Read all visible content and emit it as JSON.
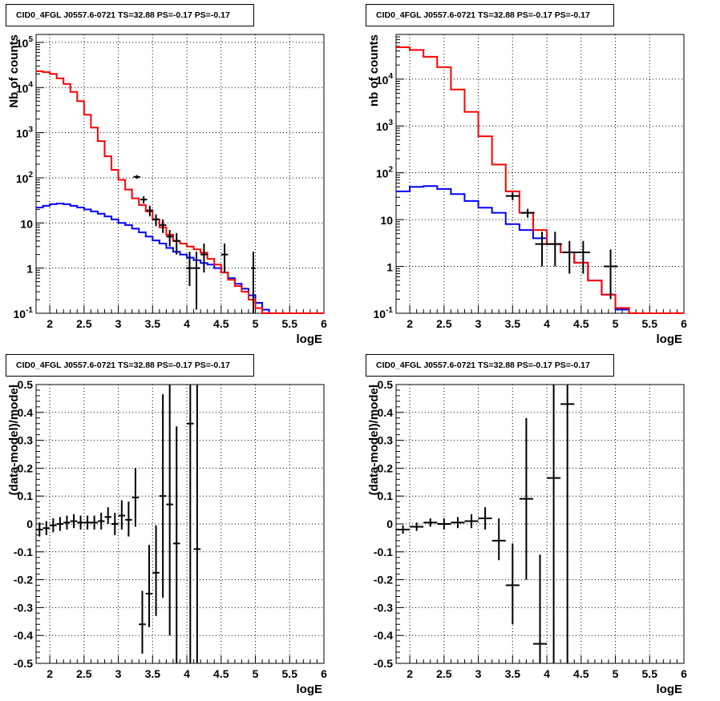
{
  "style": {
    "model_color": "#ff0000",
    "background_color": "#0000ff",
    "data_color": "#000000",
    "grid": true
  },
  "panels": [
    {
      "title": "CID0_4FGL J0557.6-0721 TS=32.88 PS=-0.17 PS=-0.17",
      "ylabel": "Nb of counts",
      "xlabel": "logE"
    },
    {
      "title": "CID0_4FGL J0557.6-0721 TS=32.88 PS=-0.17 PS=-0.17",
      "ylabel": "nb of counts",
      "xlabel": "logE"
    },
    {
      "title": "CID0_4FGL J0557.6-0721 TS=32.88 PS=-0.17 PS=-0.17",
      "ylabel": "(data-model)/model",
      "xlabel": "logE"
    },
    {
      "title": "CID0_4FGL J0557.6-0721 TS=32.88 PS=-0.17 PS=-0.17",
      "ylabel": "(data-model)/model",
      "xlabel": "logE"
    }
  ],
  "chart_data": [
    {
      "type": "histogram",
      "scale": "log",
      "xlabel": "logE",
      "ylabel": "Nb of counts",
      "xlim": [
        1.8,
        6.0
      ],
      "ylim": [
        0.1,
        150000
      ],
      "xticks": [
        "2",
        "2.5",
        "3",
        "3.5",
        "4",
        "4.5",
        "5",
        "5.5",
        "6"
      ],
      "yticks": [
        {
          "value": 0.1,
          "base": "10",
          "sup": "-1"
        },
        {
          "value": 1,
          "base": "1",
          "sup": ""
        },
        {
          "value": 10,
          "base": "10",
          "sup": ""
        },
        {
          "value": 100,
          "base": "10",
          "sup": "2"
        },
        {
          "value": 1000,
          "base": "10",
          "sup": "3"
        },
        {
          "value": 10000,
          "base": "10",
          "sup": "4"
        },
        {
          "value": 100000,
          "base": "10",
          "sup": "5"
        }
      ],
      "bin_edges": [
        1.8,
        1.9,
        2.0,
        2.1,
        2.2,
        2.3,
        2.4,
        2.5,
        2.6,
        2.7,
        2.8,
        2.9,
        3.0,
        3.1,
        3.2,
        3.3,
        3.4,
        3.5,
        3.6,
        3.7,
        3.8,
        3.9,
        4.0,
        4.1,
        4.2,
        4.3,
        4.4,
        4.5,
        4.6,
        4.7,
        4.8,
        4.9,
        5.0,
        5.1,
        5.2,
        5.3,
        5.4,
        5.5,
        5.6,
        5.7,
        5.8,
        5.9,
        6.0
      ],
      "series": [
        {
          "role": "model",
          "values": [
            23000,
            22000,
            20000,
            16000,
            12000,
            8000,
            5000,
            2500,
            1300,
            650,
            300,
            150,
            90,
            55,
            35,
            25,
            18,
            12,
            8,
            5.5,
            4.0,
            3.5,
            3.0,
            2.6,
            2.2,
            1.6,
            1.2,
            0.8,
            0.55,
            0.4,
            0.3,
            0.2,
            0.13,
            0.1,
            0.1,
            0.1,
            0.1,
            0.1,
            0.1,
            0.1,
            0.1,
            0.1
          ]
        },
        {
          "role": "background",
          "values": [
            22,
            24,
            26,
            27,
            26,
            24,
            22,
            20,
            18,
            16,
            14,
            12,
            10,
            9,
            7.5,
            6.2,
            5.0,
            4.1,
            3.5,
            2.8,
            2.3,
            2.0,
            1.7,
            1.5,
            1.3,
            1.2,
            1.0,
            0.8,
            0.6,
            0.45,
            0.35,
            0.25,
            0.17,
            0.12,
            0.1,
            0.1,
            0.1,
            0.1,
            0.1,
            0.1,
            0.1,
            0.1
          ]
        }
      ],
      "points": [
        {
          "x": 3.27,
          "y": 105,
          "xerr": 0.05,
          "ylo": 95,
          "yhi": 115
        },
        {
          "x": 3.37,
          "y": 33,
          "xerr": 0.05,
          "ylo": 27,
          "yhi": 39
        },
        {
          "x": 3.46,
          "y": 19,
          "xerr": 0.05,
          "ylo": 14,
          "yhi": 24
        },
        {
          "x": 3.55,
          "y": 12,
          "xerr": 0.05,
          "ylo": 8.5,
          "yhi": 15.5
        },
        {
          "x": 3.65,
          "y": 9,
          "xerr": 0.05,
          "ylo": 6,
          "yhi": 12
        },
        {
          "x": 3.75,
          "y": 5,
          "xerr": 0.05,
          "ylo": 3,
          "yhi": 7
        },
        {
          "x": 3.85,
          "y": 4,
          "xerr": 0.05,
          "ylo": 2,
          "yhi": 6
        },
        {
          "x": 4.04,
          "y": 1,
          "xerr": 0.05,
          "ylo": 0.4,
          "yhi": 2.3
        },
        {
          "x": 4.14,
          "y": 1,
          "xerr": 0.05,
          "ylo": 0.12,
          "yhi": 2.3
        },
        {
          "x": 4.25,
          "y": 2,
          "xerr": 0.05,
          "ylo": 0.8,
          "yhi": 3.5
        },
        {
          "x": 4.55,
          "y": 2,
          "xerr": 0.05,
          "ylo": 0.8,
          "yhi": 3.5
        },
        {
          "x": 4.97,
          "y": 1,
          "xerr": 0.03,
          "ylo": 0.1,
          "yhi": 2.3
        }
      ]
    },
    {
      "type": "histogram",
      "scale": "log",
      "xlabel": "logE",
      "ylabel": "nb of counts",
      "xlim": [
        1.8,
        6.0
      ],
      "ylim": [
        0.1,
        90000
      ],
      "xticks": [
        "2",
        "2.5",
        "3",
        "3.5",
        "4",
        "4.5",
        "5",
        "5.5",
        "6"
      ],
      "yticks": [
        {
          "value": 0.1,
          "base": "10",
          "sup": "-1"
        },
        {
          "value": 1,
          "base": "1",
          "sup": ""
        },
        {
          "value": 10,
          "base": "10",
          "sup": ""
        },
        {
          "value": 100,
          "base": "10",
          "sup": "2"
        },
        {
          "value": 1000,
          "base": "10",
          "sup": "3"
        },
        {
          "value": 10000,
          "base": "10",
          "sup": "4"
        }
      ],
      "bin_edges": [
        1.8,
        2.0,
        2.2,
        2.4,
        2.6,
        2.8,
        3.0,
        3.2,
        3.4,
        3.6,
        3.8,
        4.0,
        4.2,
        4.4,
        4.6,
        4.8,
        5.0,
        5.2,
        5.4,
        5.6,
        5.8,
        6.0
      ],
      "series": [
        {
          "role": "model",
          "values": [
            48000,
            42000,
            30000,
            18000,
            6000,
            2000,
            600,
            150,
            40,
            14,
            6,
            3,
            2,
            1.2,
            0.5,
            0.25,
            0.13,
            0.1,
            0.1,
            0.1,
            0.1
          ]
        },
        {
          "role": "background",
          "values": [
            40,
            50,
            52,
            45,
            35,
            25,
            18,
            14,
            8,
            6,
            4,
            3,
            2,
            1.2,
            0.5,
            0.25,
            0.12,
            0.1,
            0.1,
            0.1,
            0.1
          ]
        }
      ],
      "points": [
        {
          "x": 3.5,
          "y": 32,
          "xerr": 0.1,
          "ylo": 26,
          "yhi": 38
        },
        {
          "x": 3.72,
          "y": 14,
          "xerr": 0.1,
          "ylo": 11,
          "yhi": 17
        },
        {
          "x": 3.93,
          "y": 3,
          "xerr": 0.1,
          "ylo": 1.0,
          "yhi": 5.5
        },
        {
          "x": 4.12,
          "y": 3,
          "xerr": 0.1,
          "ylo": 1.0,
          "yhi": 5.5
        },
        {
          "x": 4.33,
          "y": 2,
          "xerr": 0.1,
          "ylo": 0.7,
          "yhi": 3.5
        },
        {
          "x": 4.53,
          "y": 2,
          "xerr": 0.1,
          "ylo": 0.7,
          "yhi": 3.5
        },
        {
          "x": 4.93,
          "y": 1,
          "xerr": 0.1,
          "ylo": 0.2,
          "yhi": 2.3
        }
      ]
    },
    {
      "type": "scatter",
      "scale": "linear",
      "xlabel": "logE",
      "ylabel": "(data-model)/model",
      "xlim": [
        1.8,
        6.0
      ],
      "ylim": [
        -0.5,
        0.5
      ],
      "xticks": [
        "2",
        "2.5",
        "3",
        "3.5",
        "4",
        "4.5",
        "5",
        "5.5",
        "6"
      ],
      "yticks": [
        "-0.5",
        "-0.4",
        "-0.3",
        "-0.2",
        "-0.1",
        "0",
        "0.1",
        "0.2",
        "0.3",
        "0.4",
        "0.5"
      ],
      "points": [
        {
          "x": 1.85,
          "y": -0.02,
          "xerr": 0.05,
          "ylo": -0.045,
          "yhi": 0.005
        },
        {
          "x": 1.95,
          "y": -0.015,
          "xerr": 0.05,
          "ylo": -0.04,
          "yhi": 0.01
        },
        {
          "x": 2.05,
          "y": -0.005,
          "xerr": 0.05,
          "ylo": -0.03,
          "yhi": 0.02
        },
        {
          "x": 2.15,
          "y": 0.0,
          "xerr": 0.05,
          "ylo": -0.025,
          "yhi": 0.025
        },
        {
          "x": 2.25,
          "y": 0.005,
          "xerr": 0.05,
          "ylo": -0.02,
          "yhi": 0.03
        },
        {
          "x": 2.35,
          "y": 0.01,
          "xerr": 0.05,
          "ylo": -0.015,
          "yhi": 0.035
        },
        {
          "x": 2.45,
          "y": 0.005,
          "xerr": 0.05,
          "ylo": -0.02,
          "yhi": 0.03
        },
        {
          "x": 2.55,
          "y": 0.005,
          "xerr": 0.05,
          "ylo": -0.02,
          "yhi": 0.03
        },
        {
          "x": 2.65,
          "y": 0.005,
          "xerr": 0.05,
          "ylo": -0.02,
          "yhi": 0.03
        },
        {
          "x": 2.75,
          "y": 0.01,
          "xerr": 0.05,
          "ylo": -0.02,
          "yhi": 0.04
        },
        {
          "x": 2.85,
          "y": 0.025,
          "xerr": 0.05,
          "ylo": 0.0,
          "yhi": 0.06
        },
        {
          "x": 2.95,
          "y": 0.0,
          "xerr": 0.05,
          "ylo": -0.04,
          "yhi": 0.04
        },
        {
          "x": 3.05,
          "y": 0.03,
          "xerr": 0.05,
          "ylo": -0.02,
          "yhi": 0.085
        },
        {
          "x": 3.15,
          "y": 0.015,
          "xerr": 0.05,
          "ylo": -0.045,
          "yhi": 0.08
        },
        {
          "x": 3.25,
          "y": 0.095,
          "xerr": 0.05,
          "ylo": -0.01,
          "yhi": 0.2
        },
        {
          "x": 3.35,
          "y": -0.36,
          "xerr": 0.05,
          "ylo": -0.465,
          "yhi": -0.24
        },
        {
          "x": 3.45,
          "y": -0.25,
          "xerr": 0.05,
          "ylo": -0.37,
          "yhi": -0.075
        },
        {
          "x": 3.55,
          "y": -0.175,
          "xerr": 0.05,
          "ylo": -0.33,
          "yhi": -0.005
        },
        {
          "x": 3.65,
          "y": 0.1,
          "xerr": 0.05,
          "ylo": -0.265,
          "yhi": 0.465
        },
        {
          "x": 3.75,
          "y": 0.07,
          "xerr": 0.05,
          "ylo": -0.4,
          "yhi": 0.5
        },
        {
          "x": 3.85,
          "y": -0.07,
          "xerr": 0.05,
          "ylo": -0.5,
          "yhi": 0.35
        },
        {
          "x": 4.05,
          "y": 0.36,
          "xerr": 0.05,
          "ylo": -0.5,
          "yhi": 0.5
        },
        {
          "x": 4.15,
          "y": -0.09,
          "xerr": 0.05,
          "ylo": -0.5,
          "yhi": 0.5
        }
      ]
    },
    {
      "type": "scatter",
      "scale": "linear",
      "xlabel": "logE",
      "ylabel": "(data-model)/model",
      "xlim": [
        1.8,
        6.0
      ],
      "ylim": [
        -0.5,
        0.5
      ],
      "xticks": [
        "2",
        "2.5",
        "3",
        "3.5",
        "4",
        "4.5",
        "5",
        "5.5",
        "6"
      ],
      "yticks": [
        "-0.5",
        "-0.4",
        "-0.3",
        "-0.2",
        "-0.1",
        "0",
        "0.1",
        "0.2",
        "0.3",
        "0.4",
        "0.5"
      ],
      "points": [
        {
          "x": 1.9,
          "y": -0.02,
          "xerr": 0.1,
          "ylo": -0.035,
          "yhi": -0.005
        },
        {
          "x": 2.1,
          "y": -0.01,
          "xerr": 0.1,
          "ylo": -0.025,
          "yhi": 0.005
        },
        {
          "x": 2.3,
          "y": 0.005,
          "xerr": 0.1,
          "ylo": -0.01,
          "yhi": 0.02
        },
        {
          "x": 2.5,
          "y": 0.0,
          "xerr": 0.1,
          "ylo": -0.02,
          "yhi": 0.02
        },
        {
          "x": 2.7,
          "y": 0.005,
          "xerr": 0.1,
          "ylo": -0.015,
          "yhi": 0.025
        },
        {
          "x": 2.9,
          "y": 0.01,
          "xerr": 0.1,
          "ylo": -0.015,
          "yhi": 0.035
        },
        {
          "x": 3.1,
          "y": 0.02,
          "xerr": 0.1,
          "ylo": -0.02,
          "yhi": 0.06
        },
        {
          "x": 3.3,
          "y": -0.06,
          "xerr": 0.1,
          "ylo": -0.13,
          "yhi": 0.02
        },
        {
          "x": 3.5,
          "y": -0.22,
          "xerr": 0.1,
          "ylo": -0.36,
          "yhi": -0.07
        },
        {
          "x": 3.7,
          "y": 0.09,
          "xerr": 0.1,
          "ylo": -0.2,
          "yhi": 0.38
        },
        {
          "x": 3.9,
          "y": -0.43,
          "xerr": 0.1,
          "ylo": -0.5,
          "yhi": -0.11
        },
        {
          "x": 4.1,
          "y": 0.165,
          "xerr": 0.1,
          "ylo": -0.5,
          "yhi": 0.5
        },
        {
          "x": 4.3,
          "y": 0.43,
          "xerr": 0.1,
          "ylo": -0.5,
          "yhi": 0.5
        }
      ]
    }
  ]
}
